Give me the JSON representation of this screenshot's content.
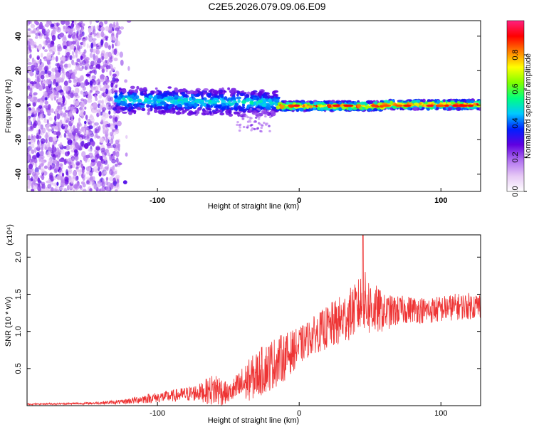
{
  "title": "C2E5.2026.079.09.06.E09",
  "chart_data": [
    {
      "type": "heatmap",
      "name": "spectrogram",
      "xlabel": "Height of straight line (km)",
      "ylabel": "Frequency (Hz)",
      "xlim": [
        -192,
        128
      ],
      "ylim": [
        -50,
        49
      ],
      "xticks": [
        -100,
        0,
        100
      ],
      "xtick_labels": [
        "-100",
        "0",
        "100"
      ],
      "yticks": [
        -40,
        -20,
        0,
        20,
        40
      ],
      "ytick_labels": [
        "-40",
        "-20",
        "0",
        "20",
        "40"
      ],
      "colorbar": {
        "label": "Normalized spectral amplitude",
        "range": [
          0,
          1
        ],
        "ticks": [
          0.0,
          0.2,
          0.4,
          0.6,
          0.8
        ],
        "tick_labels": [
          "0.0",
          "0.2",
          "0.4",
          "0.6",
          "0.8"
        ],
        "colors": [
          "#ffffff",
          "#e6c8f5",
          "#b070f0",
          "#6000e0",
          "#0020ff",
          "#00c8ff",
          "#00ff80",
          "#80ff00",
          "#ffff00",
          "#ff8000",
          "#ff0000",
          "#ff2080"
        ]
      },
      "regions": [
        {
          "description": "scattered noise",
          "x_range": [
            -192,
            -127
          ],
          "freq_range": [
            -50,
            49
          ]
        },
        {
          "description": "signal band",
          "x_range": [
            -130,
            128
          ],
          "center_freq": 0
        }
      ]
    },
    {
      "type": "line",
      "name": "snr",
      "xlabel": "Height of straight line (km)",
      "ylabel": "SNR (10 * v/v)",
      "multiplier": "(x10⁴)",
      "xlim": [
        -192,
        128
      ],
      "ylim": [
        0,
        2.3
      ],
      "xticks": [
        -100,
        0,
        100
      ],
      "xtick_labels": [
        "-100",
        "0",
        "100"
      ],
      "yticks": [
        0.5,
        1.0,
        1.5,
        2.0
      ],
      "ytick_labels": [
        "0.5",
        "1.0",
        "1.5",
        "2.0"
      ],
      "line_color": "#ee3333",
      "envelope": {
        "x": [
          -192,
          -150,
          -125,
          -110,
          -90,
          -70,
          -58,
          -50,
          -40,
          -30,
          -20,
          -10,
          0,
          10,
          20,
          30,
          40,
          45,
          50,
          60,
          70,
          80,
          90,
          100,
          110,
          128
        ],
        "mean": [
          0.02,
          0.03,
          0.05,
          0.09,
          0.13,
          0.18,
          0.22,
          0.16,
          0.28,
          0.42,
          0.55,
          0.66,
          0.8,
          0.95,
          1.05,
          1.15,
          1.3,
          1.4,
          1.32,
          1.25,
          1.28,
          1.3,
          1.28,
          1.3,
          1.33,
          1.35
        ],
        "amp": [
          0.01,
          0.015,
          0.03,
          0.06,
          0.08,
          0.12,
          0.25,
          0.12,
          0.25,
          0.32,
          0.35,
          0.32,
          0.25,
          0.25,
          0.3,
          0.35,
          0.35,
          0.45,
          0.4,
          0.25,
          0.2,
          0.18,
          0.18,
          0.18,
          0.18,
          0.18
        ]
      },
      "peak": {
        "x": 45,
        "y": 2.3
      }
    }
  ]
}
